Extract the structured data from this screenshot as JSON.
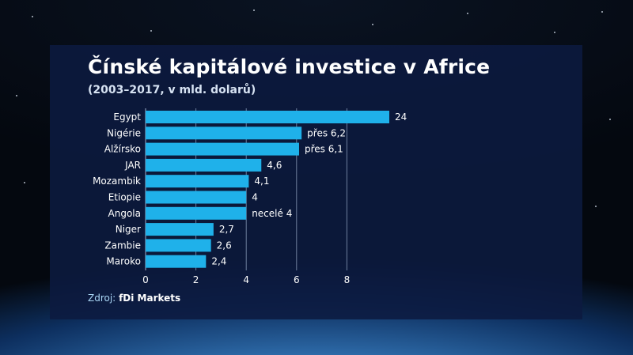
{
  "title": "Čínské kapitálové investice v Africe",
  "subtitle": "(2003–2017, v mld. dolarů)",
  "source": {
    "label": "Zdroj:",
    "name": "fDi Markets"
  },
  "colors": {
    "bar": "#1fb1ea",
    "panel": "#0c1a40",
    "text": "#ffffff",
    "grid": "#6f7f9d"
  },
  "chart_data": {
    "type": "bar",
    "orientation": "horizontal",
    "categories": [
      "Egypt",
      "Nigérie",
      "Alžírsko",
      "JAR",
      "Mozambik",
      "Etiopie",
      "Angola",
      "Niger",
      "Zambie",
      "Maroko"
    ],
    "values": [
      24,
      6.2,
      6.1,
      4.6,
      4.1,
      4,
      4,
      2.7,
      2.6,
      2.4
    ],
    "data_labels": [
      "24",
      "přes 6,2",
      "přes 6,1",
      "4,6",
      "4,1",
      "4",
      "necelé 4",
      "2,7",
      "2,6",
      "2,4"
    ],
    "xlim": [
      0,
      9.5
    ],
    "xticks": [
      0,
      2,
      4,
      6,
      8
    ],
    "xtick_labels": [
      "0",
      "2",
      "4",
      "6",
      "8"
    ],
    "grid": true,
    "truncated_bar_note": "Egypt bar is cut off at the axis maximum"
  }
}
